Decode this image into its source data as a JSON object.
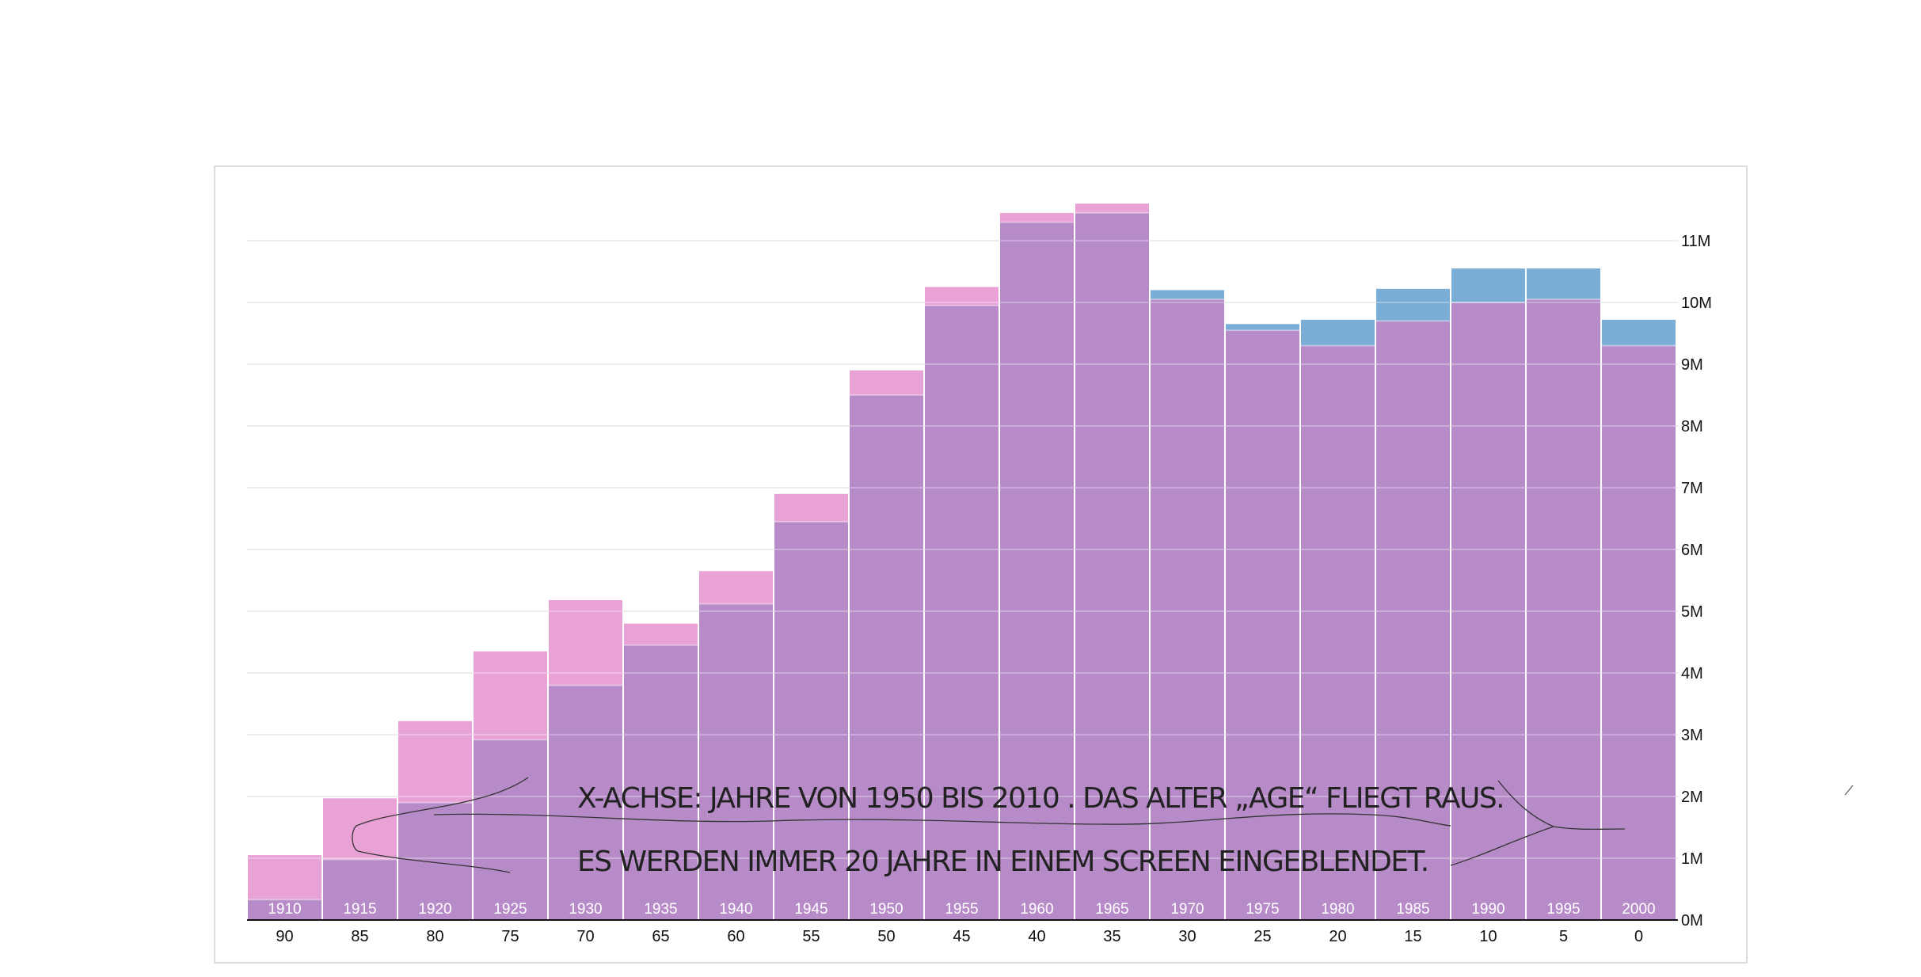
{
  "chart_data": {
    "type": "bar",
    "categories": [
      "1910",
      "1915",
      "1920",
      "1925",
      "1930",
      "1935",
      "1940",
      "1945",
      "1950",
      "1955",
      "1960",
      "1965",
      "1970",
      "1975",
      "1980",
      "1985",
      "1990",
      "1995",
      "2000"
    ],
    "age_labels": [
      "90",
      "85",
      "80",
      "75",
      "70",
      "65",
      "60",
      "55",
      "50",
      "45",
      "40",
      "35",
      "30",
      "25",
      "20",
      "15",
      "10",
      "5",
      "0"
    ],
    "series": [
      {
        "color": "#e9a2d6",
        "values": [
          1.05,
          1.97,
          3.22,
          4.35,
          5.18,
          4.8,
          5.65,
          6.9,
          8.9,
          10.25,
          11.45,
          11.6,
          10.05,
          9.55,
          9.3,
          9.7,
          10.0,
          10.05,
          9.3
        ]
      },
      {
        "color": "#7aaed6",
        "values": [
          0.33,
          0.98,
          1.9,
          2.92,
          3.8,
          4.45,
          5.12,
          6.45,
          8.5,
          9.95,
          11.3,
          11.45,
          10.2,
          9.65,
          9.72,
          10.22,
          10.55,
          10.55,
          9.72
        ]
      }
    ],
    "overlap_color": "#b78bc8",
    "yticks": [
      "0M",
      "1M",
      "2M",
      "3M",
      "4M",
      "5M",
      "6M",
      "7M",
      "8M",
      "9M",
      "10M",
      "11M"
    ],
    "ylim": [
      0,
      12
    ],
    "grid": true,
    "y_axis_position": "right"
  },
  "annotations": {
    "line1": "X-ACHSE: JAHRE VON 1950 BIS 2010 . DAS ALTER „AGE“ FLIEGT RAUS.",
    "line2": "ES WERDEN IMMER 20 JAHRE IN EINEM SCREEN EINGEBLENDET."
  }
}
